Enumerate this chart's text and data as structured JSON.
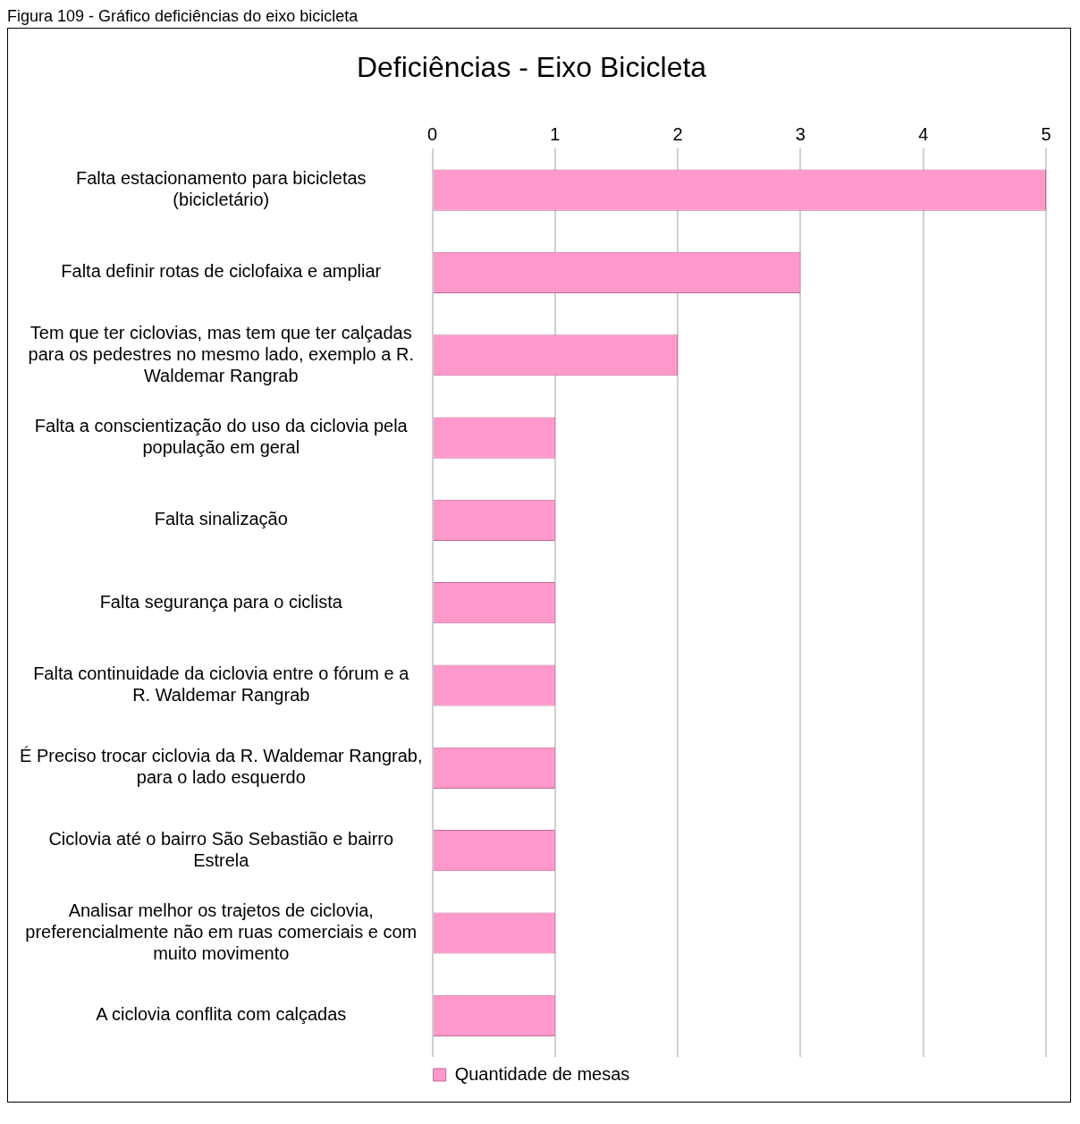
{
  "chart_data": {
    "type": "bar",
    "orientation": "horizontal",
    "title": "Deficiências - Eixo Bicicleta",
    "annotations": [
      "Figura 109 - Gráfico deficiências do eixo bicicleta"
    ],
    "categories": [
      "Falta estacionamento para bicicletas (bicicletário)",
      "Falta definir rotas de ciclofaixa e ampliar",
      "Tem que ter ciclovias, mas tem que ter calçadas para os pedestres no mesmo lado, exemplo a R. Waldemar Rangrab",
      "Falta a conscientização do uso da ciclovia pela população em geral",
      "Falta sinalização",
      "Falta segurança para o ciclista",
      "Falta continuidade da ciclovia entre o fórum e a R. Waldemar Rangrab",
      "É Preciso trocar ciclovia da R. Waldemar Rangrab, para o lado esquerdo",
      "Ciclovia até o bairro São Sebastião e bairro Estrela",
      "Analisar melhor os trajetos de ciclovia, preferencialmente não em ruas comerciais e com muito movimento",
      "A ciclovia conflita com calçadas"
    ],
    "series": [
      {
        "name": "Quantidade de mesas",
        "color": "#ff99cc",
        "values": [
          5,
          3,
          2,
          1,
          1,
          1,
          1,
          1,
          1,
          1,
          1
        ]
      }
    ],
    "xlim": [
      0,
      5
    ],
    "xticks": [
      0,
      1,
      2,
      3,
      4,
      5
    ],
    "grid": "x",
    "legend": "bottom"
  }
}
